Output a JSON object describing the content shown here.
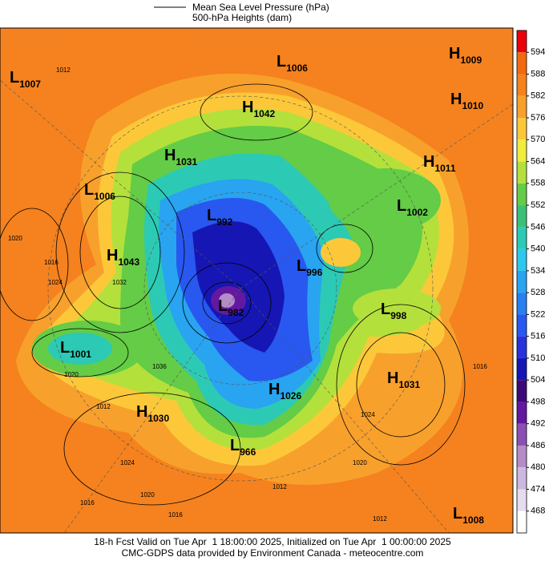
{
  "header": {
    "legend": [
      "Mean Sea Level Pressure (hPa)",
      "500-hPa Heights (dam)"
    ]
  },
  "colorbar": {
    "labels": [
      594,
      588,
      582,
      576,
      570,
      564,
      558,
      552,
      546,
      540,
      534,
      528,
      522,
      516,
      510,
      504,
      498,
      492,
      486,
      480,
      474,
      468
    ],
    "colors": [
      "#e8000b",
      "#f26a10",
      "#f5821e",
      "#f8a02c",
      "#fcc83a",
      "#f0ee3c",
      "#b4e03c",
      "#64cc46",
      "#3cc078",
      "#2ccab4",
      "#2cc8ee",
      "#28a4f0",
      "#2880f0",
      "#2858f0",
      "#2832dc",
      "#1616b4",
      "#3c0a78",
      "#6418a0",
      "#8c50b4",
      "#b48cc8",
      "#ccb8dc",
      "#e6dcf0",
      "#ffffff"
    ]
  },
  "centers": [
    {
      "kind": "L",
      "value": 1007
    },
    {
      "kind": "L",
      "value": 1006
    },
    {
      "kind": "H",
      "value": 1009
    },
    {
      "kind": "H",
      "value": 1010
    },
    {
      "kind": "H",
      "value": 1042
    },
    {
      "kind": "H",
      "value": 1031
    },
    {
      "kind": "H",
      "value": 1011
    },
    {
      "kind": "L",
      "value": 1006
    },
    {
      "kind": "L",
      "value": 1002
    },
    {
      "kind": "L",
      "value": 992
    },
    {
      "kind": "H",
      "value": 1043
    },
    {
      "kind": "L",
      "value": 996
    },
    {
      "kind": "L",
      "value": 982
    },
    {
      "kind": "L",
      "value": 998
    },
    {
      "kind": "L",
      "value": 1001
    },
    {
      "kind": "H",
      "value": 1031
    },
    {
      "kind": "H",
      "value": 1026
    },
    {
      "kind": "H",
      "value": 1030
    },
    {
      "kind": "L",
      "value": 966
    },
    {
      "kind": "L",
      "value": 1008
    }
  ],
  "contour_labels": [
    1012,
    1020,
    1016,
    1024,
    1032,
    1020,
    1012,
    1036,
    1024,
    1020,
    1024,
    1020,
    1016,
    1016,
    1012,
    1016,
    1012
  ],
  "footer": [
    "18-h Fcst Valid on Tue Apr  1 18:00:00 2025, Initialized on Tue Apr  1 00:00:00 2025",
    "CMC-GDPS data provided by Environment Canada - meteocentre.com"
  ]
}
